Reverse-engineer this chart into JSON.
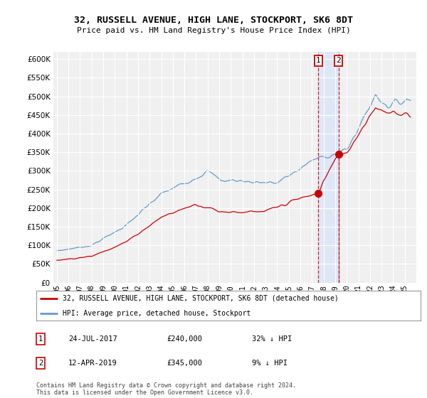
{
  "title": "32, RUSSELL AVENUE, HIGH LANE, STOCKPORT, SK6 8DT",
  "subtitle": "Price paid vs. HM Land Registry's House Price Index (HPI)",
  "ylim": [
    0,
    620000
  ],
  "ytick_values": [
    0,
    50000,
    100000,
    150000,
    200000,
    250000,
    300000,
    350000,
    400000,
    450000,
    500000,
    550000,
    600000
  ],
  "hpi_color": "#6699cc",
  "price_color": "#cc0000",
  "transaction1": {
    "date_num": 2017.56,
    "price": 240000,
    "label": "1"
  },
  "transaction2": {
    "date_num": 2019.28,
    "price": 345000,
    "label": "2"
  },
  "legend_price_label": "32, RUSSELL AVENUE, HIGH LANE, STOCKPORT, SK6 8DT (detached house)",
  "legend_hpi_label": "HPI: Average price, detached house, Stockport",
  "note1_label": "1",
  "note1_date": "24-JUL-2017",
  "note1_price": "£240,000",
  "note1_hpi": "32% ↓ HPI",
  "note2_label": "2",
  "note2_date": "12-APR-2019",
  "note2_price": "£345,000",
  "note2_hpi": "9% ↓ HPI",
  "footer": "Contains HM Land Registry data © Crown copyright and database right 2024.\nThis data is licensed under the Open Government Licence v3.0.",
  "background_color": "#ffffff",
  "plot_bg_color": "#f0f0f0"
}
